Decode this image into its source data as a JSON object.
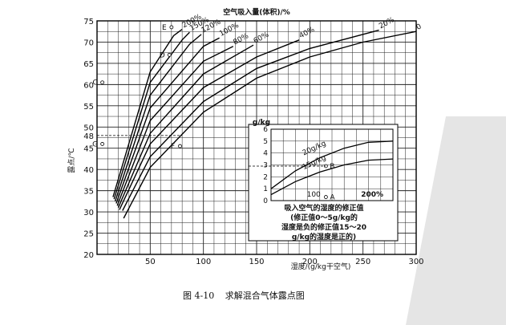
{
  "chart_data": [
    {
      "type": "line",
      "title": "空气吸入量(体积)/%",
      "xlabel": "湿度/(g/kg干空气)",
      "ylabel": "露点/℃",
      "xlim": [
        0,
        300
      ],
      "ylim": [
        20,
        75
      ],
      "x_ticks": [
        50,
        100,
        150,
        200,
        250,
        300
      ],
      "y_ticks": [
        20,
        25,
        30,
        35,
        40,
        45,
        50,
        55,
        60,
        65,
        70,
        75
      ],
      "y_extra_tick": "48",
      "grid": true,
      "series": [
        {
          "name": "0",
          "x": [
            25,
            50,
            100,
            150,
            200,
            250,
            300
          ],
          "y": [
            28.5,
            40.5,
            53.5,
            61.5,
            66.5,
            70,
            72.5
          ]
        },
        {
          "name": "20%",
          "x": [
            24,
            50,
            100,
            150,
            200,
            265
          ],
          "y": [
            30.3,
            43,
            56,
            63.8,
            68.5,
            72.8
          ]
        },
        {
          "name": "40%",
          "x": [
            21,
            50,
            100,
            150,
            190
          ],
          "y": [
            30.5,
            46,
            59.3,
            66.5,
            70.5
          ]
        },
        {
          "name": "60%",
          "x": [
            20,
            50,
            100,
            147
          ],
          "y": [
            31,
            48.5,
            62.5,
            69.3
          ]
        },
        {
          "name": "80%",
          "x": [
            19,
            50,
            100,
            128
          ],
          "y": [
            31.5,
            51.5,
            65.5,
            69
          ]
        },
        {
          "name": "100%",
          "x": [
            18,
            50,
            100,
            115
          ],
          "y": [
            32,
            54.5,
            69,
            71
          ]
        },
        {
          "name": "120%",
          "x": [
            17,
            50,
            87,
            98
          ],
          "y": [
            32.5,
            57.5,
            69.5,
            71.8
          ]
        },
        {
          "name": "150%",
          "x": [
            16,
            50,
            80,
            87
          ],
          "y": [
            33,
            60.5,
            70.5,
            72.3
          ]
        },
        {
          "name": "200%",
          "x": [
            15,
            50,
            72,
            80
          ],
          "y": [
            33.5,
            63,
            71.5,
            73
          ]
        }
      ],
      "points": [
        {
          "label": "E",
          "x": 70,
          "y": 73.5
        },
        {
          "label": "D",
          "x": 68,
          "y": 67
        },
        {
          "label": "C",
          "x": 5,
          "y": 60.5
        },
        {
          "label": "G",
          "x": 5,
          "y": 46
        },
        {
          "label": "F",
          "x": 78,
          "y": 45.5
        }
      ],
      "dashed_guides": [
        {
          "from": [
            0,
            48
          ],
          "to": [
            80,
            48
          ]
        }
      ]
    },
    {
      "type": "line",
      "ylabel": "g/kg",
      "xlim": [
        0,
        100
      ],
      "ylim": [
        0,
        6
      ],
      "y_ticks": [
        "0",
        "1",
        "2",
        "3",
        "4",
        "5",
        "6"
      ],
      "grid": true,
      "series": [
        {
          "name": "20g/kg",
          "x": [
            0,
            20,
            40,
            60,
            80,
            100
          ],
          "y": [
            1.0,
            2.5,
            3.6,
            4.4,
            4.9,
            5.0
          ]
        },
        {
          "name": "15g/kg",
          "x": [
            0,
            20,
            40,
            60,
            80,
            100
          ],
          "y": [
            0.5,
            1.6,
            2.4,
            3.0,
            3.4,
            3.5
          ]
        }
      ],
      "points": [
        {
          "label": "B",
          "x": 45,
          "y": 2.9
        },
        {
          "label": "A",
          "x": 45,
          "y": 0.3
        }
      ],
      "annotations": [
        "100",
        "200%",
        "吸入空气的湿度的修正值",
        "(修正值0～5g/kg的",
        "湿度是负的修正值15～20",
        "g/kg的湿度是正的)"
      ]
    }
  ],
  "caption": {
    "number": "图 4-10",
    "text": "求解混合气体露点图"
  }
}
